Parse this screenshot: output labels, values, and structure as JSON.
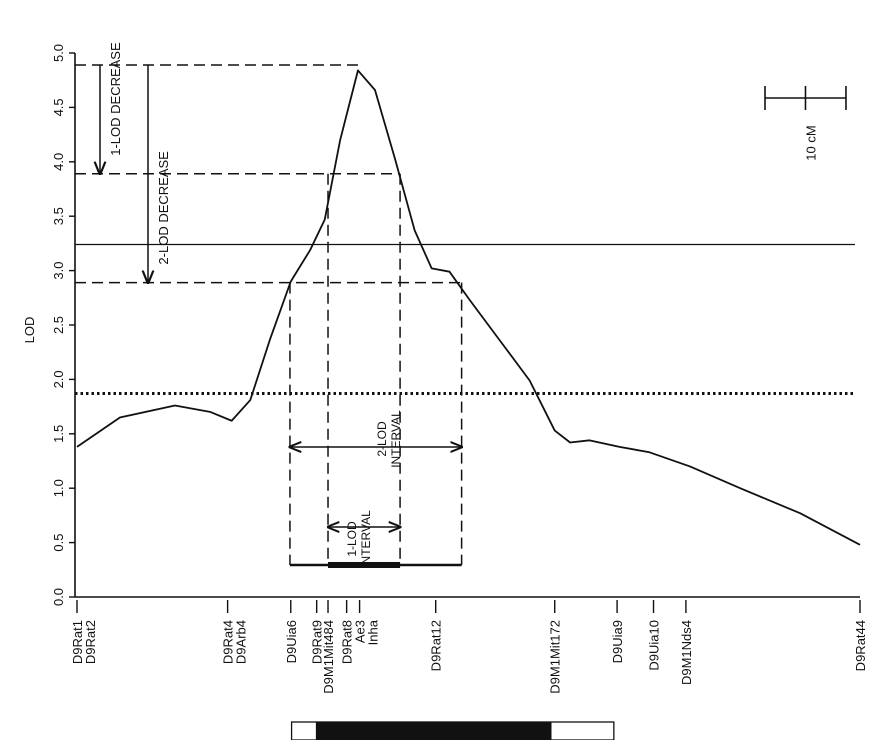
{
  "chart_data": {
    "type": "line",
    "ylabel": "LOD",
    "xlim": [
      0,
      96.7
    ],
    "ylim": [
      0,
      5
    ],
    "yticks": [
      {
        "value": 0,
        "label": "0.0"
      },
      0.5,
      {
        "value": 1,
        "label": "1.0"
      },
      1.5,
      {
        "value": 2,
        "label": "2.0"
      },
      2.5,
      {
        "value": 3,
        "label": "3.0"
      },
      3.5,
      {
        "value": 4,
        "label": "4.0"
      },
      4.5,
      {
        "value": 5,
        "label": "5.0"
      }
    ],
    "x": [
      0,
      5.3,
      12.1,
      16.5,
      19.1,
      21.4,
      23.8,
      26.4,
      28.8,
      30.6,
      32.5,
      34.7,
      36.8,
      39.3,
      41.7,
      43.8,
      46.0,
      48.5,
      52.2,
      55.9,
      59.0,
      60.9,
      63.3,
      67.0,
      70.7,
      75.7,
      81.9,
      89.3,
      96.7
    ],
    "series": [
      {
        "color": "#111111",
        "values": [
          1.38,
          1.65,
          1.76,
          1.7,
          1.62,
          1.81,
          2.36,
          2.9,
          3.19,
          3.47,
          4.2,
          4.84,
          4.66,
          4.02,
          3.37,
          3.02,
          2.99,
          2.73,
          2.36,
          1.99,
          1.53,
          1.42,
          1.44,
          1.38,
          1.33,
          1.2,
          1.0,
          0.77,
          0.48
        ]
      }
    ],
    "thresholds": [
      {
        "value": 3.24,
        "style": "solid"
      },
      {
        "value": 1.87,
        "style": "dotted"
      }
    ],
    "peak": {
      "lod": 4.89,
      "pos": 34.7
    },
    "decreases": [
      {
        "label": "1-LOD DECREASE",
        "level": 3.89
      },
      {
        "label": "2-LOD DECREASE",
        "level": 2.89
      }
    ],
    "intervals": [
      {
        "label_lines": [
          "1-LOD",
          "INTERVAL"
        ],
        "level": 3.89,
        "start": 31.0,
        "end": 39.9
      },
      {
        "label_lines": [
          "2-LOD",
          "INTERVAL"
        ],
        "level": 2.89,
        "start": 26.3,
        "end": 47.5
      }
    ],
    "markers": [
      {
        "names": [
          "D9Rat1",
          "D9Rat2"
        ],
        "pos": 0
      },
      {
        "names": [
          "D9Rat4",
          "D9Arb4"
        ],
        "pos": 18.6
      },
      {
        "names": [
          "D9Uia6"
        ],
        "pos": 26.4
      },
      {
        "names": [
          "D9Rat9"
        ],
        "pos": 29.6
      },
      {
        "names": [
          "D9M1Mit484"
        ],
        "pos": 31.0
      },
      {
        "names": [
          "D9Rat8"
        ],
        "pos": 33.3
      },
      {
        "names": [
          "Ae3",
          "Inha"
        ],
        "pos": 34.9
      },
      {
        "names": [
          "D9Rat12"
        ],
        "pos": 44.3
      },
      {
        "names": [
          "D9M1Mit172"
        ],
        "pos": 59.0
      },
      {
        "names": [
          "D9Uia9"
        ],
        "pos": 66.7
      },
      {
        "names": [
          "D9Uia10"
        ],
        "pos": 71.2
      },
      {
        "names": [
          "D9M1Nds4"
        ],
        "pos": 75.2
      },
      {
        "names": [
          "D9Rat44"
        ],
        "pos": 96.7
      }
    ],
    "region": {
      "outer": [
        26.5,
        66.3
      ],
      "inner": [
        29.5,
        58.6
      ]
    },
    "scale_bar": {
      "label": "10 cM",
      "length": 10
    }
  }
}
